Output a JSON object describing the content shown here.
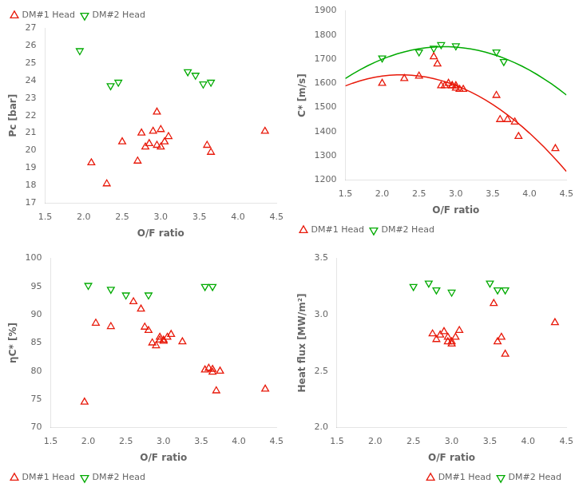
{
  "chart_data": [
    {
      "type": "scatter",
      "x_label": "O/F ratio",
      "y_label": "Pc [bar]",
      "xlim": [
        1.5,
        4.5
      ],
      "xticks": [
        1.5,
        {
          "value": 2.0,
          "label": "2.0"
        },
        2.5,
        {
          "value": 3.0,
          "label": "3.0"
        },
        3.5,
        {
          "value": 4.0,
          "label": "4.0"
        },
        4.5
      ],
      "ylim": [
        17,
        27
      ],
      "yticks": [
        17,
        18,
        19,
        20,
        21,
        22,
        23,
        24,
        25,
        26,
        27
      ],
      "grid": false,
      "legend": "upper left",
      "series": [
        {
          "name": "DM#1 Head",
          "color": "#e8190a",
          "marker": "triangle_up",
          "x": [
            2.1,
            2.3,
            2.5,
            2.7,
            2.75,
            2.8,
            2.85,
            2.9,
            2.95,
            2.95,
            3.0,
            3.0,
            3.05,
            3.1,
            3.6,
            3.65,
            4.35
          ],
          "values": [
            19.3,
            18.1,
            20.5,
            19.4,
            21.0,
            20.2,
            20.4,
            21.1,
            22.2,
            20.3,
            21.2,
            20.2,
            20.5,
            20.8,
            20.3,
            19.9,
            21.1
          ]
        },
        {
          "name": "DM#2 Head",
          "color": "#00aa00",
          "marker": "triangle_down",
          "x": [
            1.95,
            2.35,
            2.45,
            3.35,
            3.45,
            3.55,
            3.65
          ],
          "values": [
            25.7,
            23.7,
            23.9,
            24.5,
            24.3,
            23.8,
            23.9
          ]
        }
      ]
    },
    {
      "type": "scatter",
      "x_label": "O/F ratio",
      "y_label": "C* [m/s]",
      "xlim": [
        1.5,
        4.5
      ],
      "xticks": [
        1.5,
        {
          "value": 2.0,
          "label": "2.0"
        },
        2.5,
        {
          "value": 3.0,
          "label": "3.0"
        },
        3.5,
        {
          "value": 4.0,
          "label": "4.0"
        },
        4.5
      ],
      "ylim": [
        1200,
        1900
      ],
      "yticks": [
        1200,
        1300,
        1400,
        1500,
        1600,
        1700,
        1800,
        1900
      ],
      "grid": false,
      "legend": "lower left",
      "series": [
        {
          "name": "DM#1 Head",
          "color": "#e8190a",
          "marker": "triangle_up",
          "line_style": "solid",
          "x": [
            2.0,
            2.3,
            2.5,
            2.7,
            2.75,
            2.8,
            2.85,
            2.9,
            2.95,
            2.95,
            3.0,
            3.0,
            3.05,
            3.1,
            3.55,
            3.6,
            3.7,
            3.8,
            3.85,
            4.35
          ],
          "values": [
            1600,
            1620,
            1630,
            1710,
            1680,
            1590,
            1590,
            1600,
            1590,
            1590,
            1590,
            1580,
            1575,
            1575,
            1550,
            1450,
            1450,
            1440,
            1380,
            1330
          ],
          "fit_x": [
            1.5,
            1.6,
            1.7,
            1.8,
            1.9,
            2.0,
            2.1,
            2.2,
            2.3,
            2.4,
            2.5,
            2.6,
            2.7,
            2.8,
            2.9,
            3.0,
            3.1,
            3.2,
            3.3,
            3.4,
            3.5,
            3.6,
            3.7,
            3.8,
            3.9,
            4.0,
            4.1,
            4.2,
            4.3,
            4.4,
            4.5
          ],
          "fit_values": [
            1589.4,
            1600.7,
            1610.3,
            1618.4,
            1624.9,
            1629.8,
            1633.1,
            1634.8,
            1634.9,
            1633.4,
            1630.3,
            1625.7,
            1619.4,
            1611.6,
            1602.2,
            1591.2,
            1578.6,
            1564.4,
            1548.6,
            1531.2,
            1512.2,
            1491.7,
            1469.5,
            1445.8,
            1420.5,
            1393.6,
            1365.0,
            1335.0,
            1303.3,
            1270.0,
            1235.1
          ]
        },
        {
          "name": "DM#2 Head",
          "color": "#00aa00",
          "marker": "triangle_down",
          "line_style": "solid",
          "x": [
            2.0,
            2.5,
            2.7,
            2.8,
            3.0,
            3.55,
            3.65
          ],
          "values": [
            1705,
            1730,
            1745,
            1760,
            1755,
            1730,
            1690
          ],
          "fit_x": [
            1.5,
            1.6,
            1.7,
            1.8,
            1.9,
            2.0,
            2.1,
            2.2,
            2.3,
            2.4,
            2.5,
            2.6,
            2.7,
            2.8,
            2.9,
            3.0,
            3.1,
            3.2,
            3.3,
            3.4,
            3.5,
            3.6,
            3.7,
            3.8,
            3.9,
            4.0,
            4.1,
            4.2,
            4.3,
            4.4,
            4.5
          ],
          "fit_values": [
            1620.0,
            1638.9,
            1656.3,
            1672.3,
            1686.8,
            1699.9,
            1711.4,
            1721.6,
            1730.2,
            1737.4,
            1743.2,
            1747.5,
            1750.3,
            1751.7,
            1751.6,
            1750.1,
            1747.0,
            1742.6,
            1736.7,
            1729.3,
            1720.4,
            1710.1,
            1698.4,
            1685.1,
            1670.5,
            1654.3,
            1636.7,
            1617.7,
            1597.2,
            1575.2,
            1551.7
          ]
        }
      ]
    },
    {
      "type": "scatter",
      "x_label": "O/F ratio",
      "y_label": "ηC* [%]",
      "xlim": [
        1.5,
        4.5
      ],
      "xticks": [
        1.5,
        {
          "value": 2.0,
          "label": "2.0"
        },
        2.5,
        {
          "value": 3.0,
          "label": "3.0"
        },
        3.5,
        {
          "value": 4.0,
          "label": "4.0"
        },
        4.5
      ],
      "ylim": [
        70,
        100
      ],
      "yticks": [
        70,
        75,
        80,
        85,
        90,
        95,
        100
      ],
      "grid": false,
      "legend": "lower left",
      "series": [
        {
          "name": "DM#1 Head",
          "color": "#e8190a",
          "marker": "triangle_up",
          "x": [
            1.95,
            2.1,
            2.3,
            2.6,
            2.7,
            2.75,
            2.8,
            2.85,
            2.9,
            2.95,
            2.95,
            3.0,
            3.0,
            3.05,
            3.1,
            3.25,
            3.55,
            3.6,
            3.65,
            3.65,
            3.7,
            3.75,
            4.35
          ],
          "values": [
            74.5,
            88.5,
            87.9,
            92.3,
            91.0,
            87.8,
            87.2,
            85.0,
            84.5,
            85.5,
            86.0,
            85.5,
            85.3,
            86.0,
            86.5,
            85.2,
            80.2,
            80.5,
            80.3,
            79.8,
            76.5,
            80.0,
            76.8
          ]
        },
        {
          "name": "DM#2 Head",
          "color": "#00aa00",
          "marker": "triangle_down",
          "x": [
            2.0,
            2.3,
            2.5,
            2.8,
            3.55,
            3.65
          ],
          "values": [
            95.2,
            94.5,
            93.5,
            93.5,
            95.0,
            95.0
          ]
        }
      ]
    },
    {
      "type": "scatter",
      "x_label": "O/F ratio",
      "y_label": "Heat flux [MW/m²]",
      "xlim": [
        1.5,
        4.5
      ],
      "xticks": [
        1.5,
        {
          "value": 2.0,
          "label": "2.0"
        },
        2.5,
        {
          "value": 3.0,
          "label": "3.0"
        },
        3.5,
        {
          "value": 4.0,
          "label": "4.0"
        },
        4.5
      ],
      "ylim": [
        2.0,
        3.5
      ],
      "yticks": [
        {
          "value": 2.0,
          "label": "2.0"
        },
        2.5,
        {
          "value": 3.0,
          "label": "3.0"
        },
        3.5
      ],
      "grid": false,
      "legend": "lower right",
      "series": [
        {
          "name": "DM#1 Head",
          "color": "#e8190a",
          "marker": "triangle_up",
          "x": [
            2.75,
            2.8,
            2.85,
            2.9,
            2.95,
            2.95,
            3.0,
            3.0,
            3.05,
            3.1,
            3.55,
            3.6,
            3.65,
            3.7,
            4.35
          ],
          "values": [
            2.83,
            2.78,
            2.82,
            2.85,
            2.8,
            2.76,
            2.76,
            2.74,
            2.8,
            2.86,
            3.1,
            2.76,
            2.8,
            2.65,
            2.93
          ]
        },
        {
          "name": "DM#2 Head",
          "color": "#00aa00",
          "marker": "triangle_down",
          "x": [
            2.5,
            2.7,
            2.8,
            3.0,
            3.5,
            3.6,
            3.7
          ],
          "values": [
            3.25,
            3.28,
            3.22,
            3.2,
            3.28,
            3.22,
            3.22
          ]
        }
      ]
    }
  ]
}
